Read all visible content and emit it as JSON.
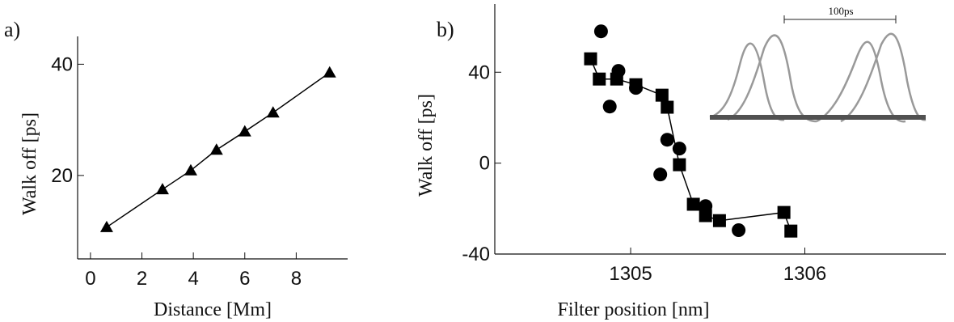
{
  "chart_data": [
    {
      "type": "scatter",
      "panel_label": "a)",
      "x_label": "Distance [Mm]",
      "y_label": "Walk off [ps]",
      "marker": "triangle",
      "line": true,
      "xlim": [
        -0.5,
        10
      ],
      "xticks": [
        0,
        2,
        4,
        6,
        8
      ],
      "ylim": [
        5,
        45
      ],
      "yticks": [
        20,
        40
      ],
      "series": [
        {
          "color": "#000000",
          "x": [
            0.63,
            2.8,
            3.9,
            4.9,
            6.0,
            7.1,
            9.3
          ],
          "values": [
            10.7,
            17.5,
            20.9,
            24.6,
            27.9,
            31.3,
            38.5
          ]
        }
      ]
    },
    {
      "type": "scatter",
      "panel_label": "b)",
      "x_label": "Filter position [nm]",
      "y_label": "Walk off  [ps]",
      "annotation": "100ps",
      "xlim": [
        1304.22,
        1306.81
      ],
      "xticks": [
        1305,
        1306
      ],
      "ylim": [
        -40,
        70
      ],
      "yticks": [
        -40,
        0,
        40
      ],
      "series": [
        {
          "color": "#000000",
          "marker": "square",
          "line": true,
          "x": [
            1304.77,
            1304.82,
            1304.92,
            1305.03,
            1305.18,
            1305.21,
            1305.28,
            1305.36,
            1305.43,
            1305.51,
            1305.88,
            1305.92
          ],
          "values": [
            45.9,
            37.0,
            37.0,
            34.5,
            29.9,
            24.6,
            -0.7,
            -18.1,
            -23.1,
            -25.3,
            -21.7,
            -29.9
          ]
        },
        {
          "color": "#000000",
          "marker": "circle",
          "line": false,
          "x": [
            1304.83,
            1304.88,
            1304.93,
            1305.03,
            1305.21,
            1305.17,
            1305.28,
            1305.43,
            1305.62
          ],
          "values": [
            58.0,
            24.9,
            40.6,
            33.1,
            10.3,
            -5.0,
            6.4,
            -18.9,
            -29.5
          ]
        }
      ]
    }
  ]
}
